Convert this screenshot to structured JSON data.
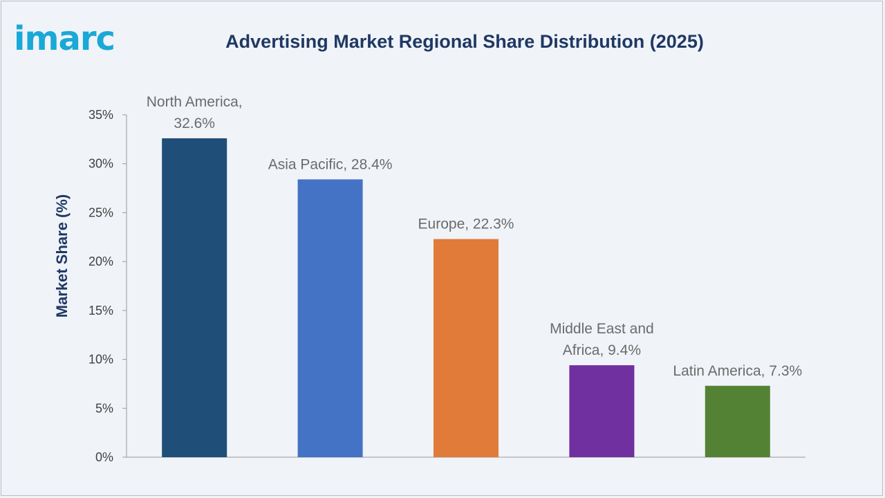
{
  "logo": {
    "text": "imarc",
    "color": "#1aa9d6"
  },
  "chart_data": {
    "type": "bar",
    "title": "Advertising Market Regional Share Distribution (2025)",
    "xlabel": "",
    "ylabel": "Market Share (%)",
    "ylim": [
      0,
      35
    ],
    "yticks": [
      0,
      5,
      10,
      15,
      20,
      25,
      30,
      35
    ],
    "ytick_labels": [
      "0%",
      "5%",
      "10%",
      "15%",
      "20%",
      "25%",
      "30%",
      "35%"
    ],
    "grid": false,
    "legend": "none",
    "categories": [
      "North America",
      "Asia Pacific",
      "Europe",
      "Middle East and Africa",
      "Latin America"
    ],
    "values": [
      32.6,
      28.4,
      22.3,
      9.4,
      7.3
    ],
    "data_labels": [
      [
        "North America,",
        "32.6%"
      ],
      [
        "Asia Pacific, 28.4%"
      ],
      [
        "Europe, 22.3%"
      ],
      [
        "Middle East and",
        "Africa, 9.4%"
      ],
      [
        "Latin America, 7.3%"
      ]
    ],
    "colors": [
      "#1f4e79",
      "#4472c4",
      "#e07b39",
      "#7030a0",
      "#548235"
    ]
  }
}
